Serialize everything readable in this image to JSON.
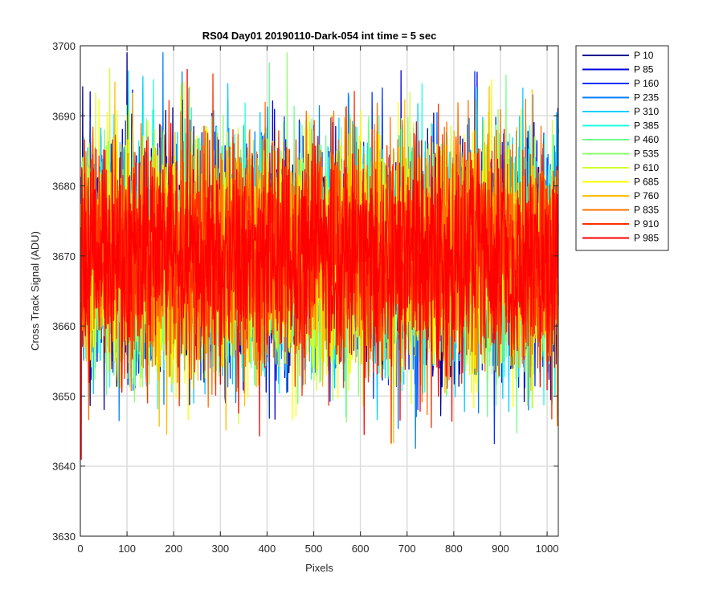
{
  "chart_data": {
    "type": "line",
    "title": "RS04 Day01 20190110-Dark-054 int time = 5 sec",
    "xlabel": "Pixels",
    "ylabel": "Cross Track Signal (ADU)",
    "xlim": [
      0,
      1024
    ],
    "ylim": [
      3630,
      3700
    ],
    "xticks": [
      0,
      100,
      200,
      300,
      400,
      500,
      600,
      700,
      800,
      900,
      1000
    ],
    "yticks": [
      3630,
      3640,
      3650,
      3660,
      3670,
      3680,
      3690,
      3700
    ],
    "grid": true,
    "legend_position": "outside-top-right",
    "noise_model": {
      "mean": 3670,
      "stdev": 8,
      "points_per_series": 1024
    },
    "series": [
      {
        "name": "P 10",
        "color": "#00008f"
      },
      {
        "name": "P 85",
        "color": "#0000df"
      },
      {
        "name": "P 160",
        "color": "#0030ff"
      },
      {
        "name": "P 235",
        "color": "#0080ff"
      },
      {
        "name": "P 310",
        "color": "#00cfff"
      },
      {
        "name": "P 385",
        "color": "#20ffdf"
      },
      {
        "name": "P 460",
        "color": "#6fff8f"
      },
      {
        "name": "P 535",
        "color": "#8fff6f"
      },
      {
        "name": "P 610",
        "color": "#cfff30"
      },
      {
        "name": "P 685",
        "color": "#ffff00"
      },
      {
        "name": "P 760",
        "color": "#ffbf00"
      },
      {
        "name": "P 835",
        "color": "#ff7000"
      },
      {
        "name": "P 910",
        "color": "#ff3000"
      },
      {
        "name": "P 985",
        "color": "#ff0000"
      }
    ]
  }
}
